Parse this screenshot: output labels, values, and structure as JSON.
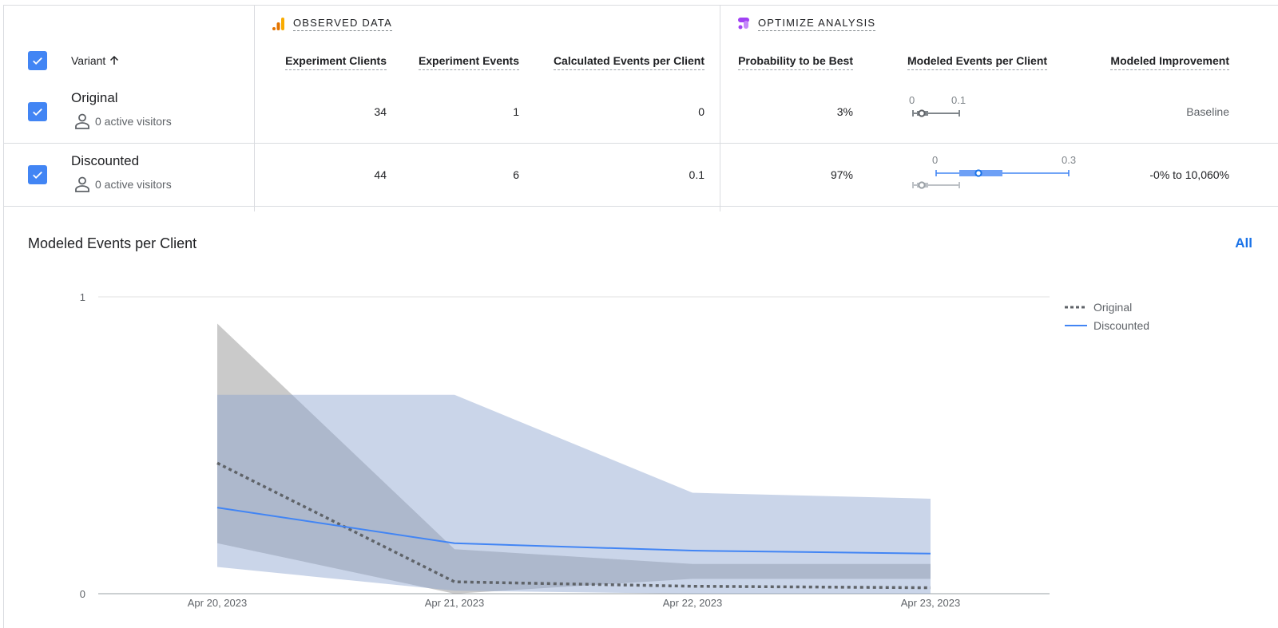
{
  "header": {
    "variant_label": "Variant",
    "observed_section": "OBSERVED DATA",
    "optimize_section": "OPTIMIZE ANALYSIS",
    "columns": {
      "experiment_clients": "Experiment Clients",
      "experiment_events": "Experiment Events",
      "calculated_events": "Calculated Events per Client",
      "probability_best": "Probability to be Best",
      "modeled_events": "Modeled Events per Client",
      "modeled_improvement": "Modeled Improvement"
    }
  },
  "rows": [
    {
      "name": "Original",
      "visitors": "0 active visitors",
      "experiment_clients": "34",
      "experiment_events": "1",
      "calculated_events": "0",
      "probability_best": "3%",
      "interval_min_label": "0",
      "interval_max_label": "0.1",
      "improvement": "Baseline"
    },
    {
      "name": "Discounted",
      "visitors": "0 active visitors",
      "experiment_clients": "44",
      "experiment_events": "6",
      "calculated_events": "0.1",
      "probability_best": "97%",
      "interval_min_label": "0",
      "interval_max_label": "0.3",
      "improvement": "-0% to 10,060%"
    }
  ],
  "chart": {
    "title": "Modeled Events per Client",
    "all_link": "All"
  },
  "colors": {
    "checkbox": "#4285f4",
    "original_line": "#5f6368",
    "discounted_line": "#4285f4",
    "original_band": "#9e9e9e",
    "discounted_band": "#8aa2cf",
    "link": "#1a73e8",
    "ga_icon": "#f9ab00",
    "optimize_icon": "#a142f4"
  },
  "chart_data": {
    "type": "line",
    "x": [
      "Apr 20, 2023",
      "Apr 21, 2023",
      "Apr 22, 2023",
      "Apr 23, 2023"
    ],
    "ylim": [
      0,
      1
    ],
    "yticks": [
      "0",
      "1"
    ],
    "legend": "top-right",
    "series": [
      {
        "name": "Original",
        "style": "dotted",
        "values": [
          0.44,
          0.04,
          0.025,
          0.02
        ],
        "band_low": [
          0.17,
          0.0,
          0.05,
          0.05
        ],
        "band_high": [
          0.91,
          0.15,
          0.1,
          0.1
        ]
      },
      {
        "name": "Discounted",
        "style": "solid",
        "values": [
          0.29,
          0.17,
          0.145,
          0.135
        ],
        "band_low": [
          0.09,
          0.01,
          0.0,
          0.0
        ],
        "band_high": [
          0.67,
          0.67,
          0.34,
          0.32
        ]
      }
    ]
  }
}
